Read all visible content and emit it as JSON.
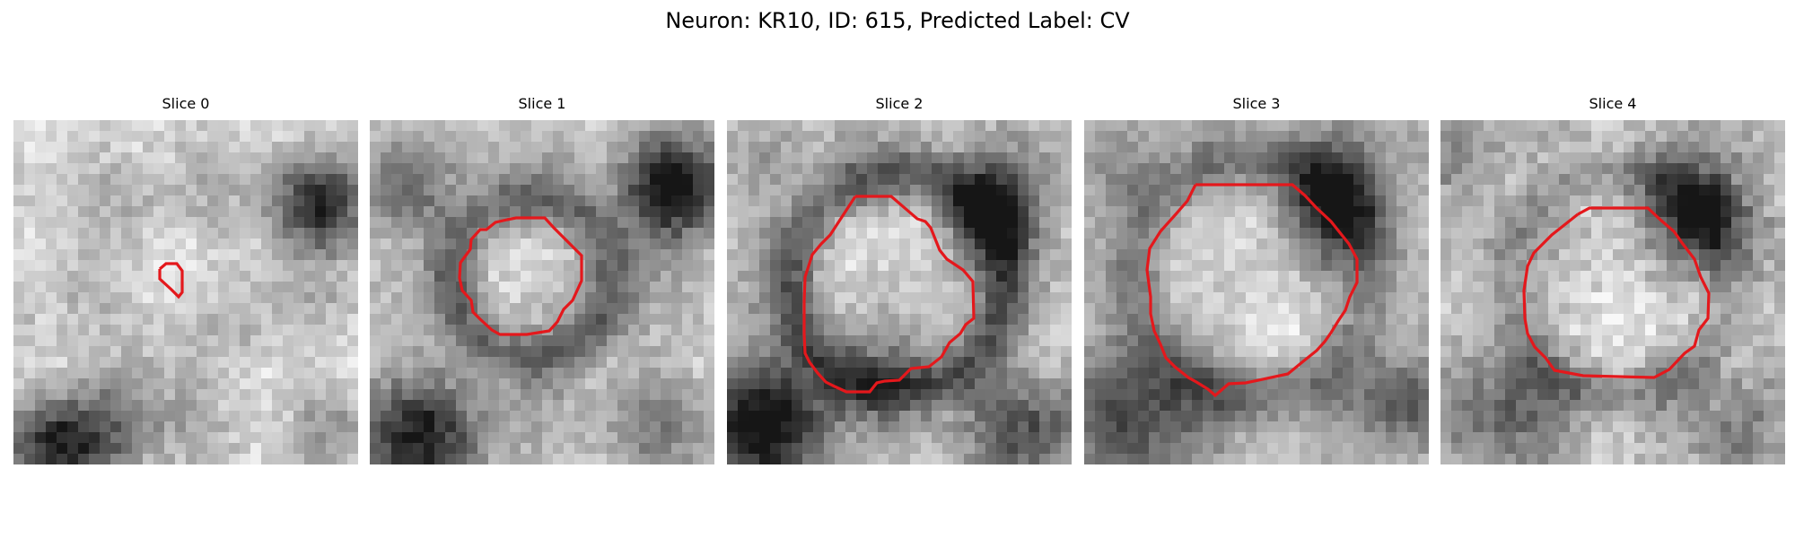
{
  "figure": {
    "title": "Neuron: KR10, ID: 615, Predicted Label: CV"
  },
  "colors": {
    "contour": "#e4181c",
    "background": "#ffffff",
    "colormap": "grayscale"
  },
  "slices": [
    {
      "label": "Slice 0"
    },
    {
      "label": "Slice 1"
    },
    {
      "label": "Slice 2"
    },
    {
      "label": "Slice 3"
    },
    {
      "label": "Slice 4"
    }
  ]
}
